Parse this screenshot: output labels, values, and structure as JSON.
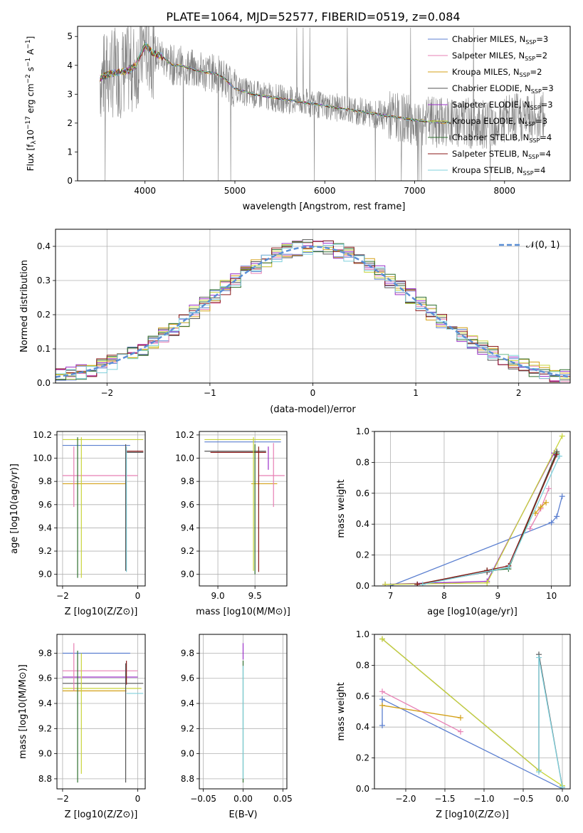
{
  "figure": {
    "title": "PLATE=1064, MJD=52577, FIBERID=0519, z=0.084"
  },
  "colors": {
    "Chabrier MILES": "#5b7fd0",
    "Salpeter MILES": "#e77fb4",
    "Kroupa MILES": "#d4a017",
    "Chabrier ELODIE": "#555555",
    "Salpeter ELODIE": "#9b30c8",
    "Kroupa ELODIE": "#c8d43a",
    "Chabrier STELIB": "#2f6f2f",
    "Salpeter STELIB": "#8b1a1a",
    "Kroupa STELIB": "#7fd0dc",
    "data": "#808080",
    "orange": "#e8702a",
    "normal_curve": "#5b8fd6"
  },
  "chart_data": [
    {
      "id": "spectrum",
      "type": "line",
      "title": "PLATE=1064, MJD=52577, FIBERID=0519, z=0.084",
      "xlabel": "wavelength [Angstrom, rest frame]",
      "ylabel_parts": [
        "Flux [f",
        "λ",
        "10",
        "−17",
        " erg cm",
        "−2",
        " s",
        "−1",
        " A",
        "−1",
        "]"
      ],
      "xlim": [
        3250,
        8730
      ],
      "ylim": [
        0,
        5.35
      ],
      "xticks": [
        4000,
        5000,
        6000,
        7000,
        8000
      ],
      "xtick_labels": [
        "4000",
        "5000",
        "6000",
        "7000",
        "8000"
      ],
      "yticks": [
        0,
        1,
        2,
        3,
        4,
        5
      ],
      "ytick_labels": [
        "0",
        "1",
        "2",
        "3",
        "4",
        "5"
      ],
      "grid": false,
      "legend_position": "top-right",
      "data_color": "#808080",
      "model_x": [
        3500,
        3600,
        3700,
        3800,
        3900,
        4000,
        4100,
        4200,
        4300,
        4400,
        4500,
        4600,
        4700,
        4800,
        4900,
        5000,
        5200,
        5400,
        5600,
        5800,
        6000,
        6200,
        6400,
        6600,
        6800,
        7000,
        7200,
        7400,
        7600,
        7800,
        8000,
        8200,
        8400
      ],
      "model_y": [
        3.55,
        3.7,
        3.75,
        3.8,
        4.0,
        4.7,
        4.4,
        4.3,
        4.0,
        4.0,
        3.9,
        3.8,
        3.75,
        3.7,
        3.5,
        3.2,
        3.0,
        2.9,
        2.8,
        2.7,
        2.6,
        2.5,
        2.4,
        2.3,
        2.2,
        2.1,
        2.05,
        2.0,
        2.0,
        2.0,
        2.1,
        2.2,
        2.2
      ],
      "legend": [
        {
          "label": "Chabrier MILES, N",
          "sub": "SSP",
          "suffix": "=3"
        },
        {
          "label": "Salpeter MILES, N",
          "sub": "SSP",
          "suffix": "=2"
        },
        {
          "label": "Kroupa MILES, N",
          "sub": "SSP",
          "suffix": "=2"
        },
        {
          "label": "Chabrier ELODIE, N",
          "sub": "SSP",
          "suffix": "=3"
        },
        {
          "label": "Salpeter ELODIE, N",
          "sub": "SSP",
          "suffix": "=3"
        },
        {
          "label": "Kroupa ELODIE, N",
          "sub": "SSP",
          "suffix": "=3"
        },
        {
          "label": "Chabrier STELIB, N",
          "sub": "SSP",
          "suffix": "=4"
        },
        {
          "label": "Salpeter STELIB, N",
          "sub": "SSP",
          "suffix": "=4"
        },
        {
          "label": "Kroupa STELIB, N",
          "sub": "SSP",
          "suffix": "=4"
        }
      ]
    },
    {
      "id": "residuals",
      "type": "line",
      "xlabel": "(data-model)/error",
      "ylabel": "Normed distribution",
      "xlim": [
        -2.5,
        2.5
      ],
      "ylim": [
        0,
        0.45
      ],
      "xticks": [
        -2,
        -1,
        0,
        1,
        2
      ],
      "xtick_labels": [
        "−2",
        "−1",
        "0",
        "1",
        "2"
      ],
      "yticks": [
        0,
        0.1,
        0.2,
        0.3,
        0.4
      ],
      "ytick_labels": [
        "0.0",
        "0.1",
        "0.2",
        "0.3",
        "0.4"
      ],
      "grid": true,
      "legend_position": "top-right",
      "normal_label": "𝒩(0, 1)",
      "bin_width": 0.1
    },
    {
      "id": "age_vs_Z",
      "type": "scatter",
      "xlabel": "Z [log10(Z/Z⊙)]",
      "ylabel": "age  [log10(age/yr)]",
      "xlim": [
        -2.15,
        0.2
      ],
      "ylim": [
        8.9,
        10.23
      ],
      "xticks": [
        -2,
        0
      ],
      "xtick_labels": [
        "−2",
        "0"
      ],
      "yticks": [
        9.0,
        9.2,
        9.4,
        9.6,
        9.8,
        10.0,
        10.2
      ],
      "ytick_labels": [
        "9.0",
        "9.2",
        "9.4",
        "9.6",
        "9.8",
        "10.0",
        "10.2"
      ],
      "grid": true
    },
    {
      "id": "age_vs_mass",
      "type": "scatter",
      "xlabel": "mass [log10(M/M⊙)]",
      "ylabel": "",
      "xlim": [
        8.75,
        9.93
      ],
      "ylim": [
        8.9,
        10.23
      ],
      "xticks": [
        9.0,
        9.5
      ],
      "xtick_labels": [
        "9.0",
        "9.5"
      ],
      "yticks": [
        9.0,
        9.2,
        9.4,
        9.6,
        9.8,
        10.0,
        10.2
      ],
      "ytick_labels": [
        "9.0",
        "9.2",
        "9.4",
        "9.6",
        "9.8",
        "10.0",
        "10.2"
      ],
      "grid": true
    },
    {
      "id": "weight_vs_age",
      "type": "line",
      "xlabel": "age  [log10(age/yr)]",
      "ylabel": "mass weight",
      "xlim": [
        6.7,
        10.35
      ],
      "ylim": [
        0,
        1.0
      ],
      "xticks": [
        7,
        8,
        9,
        10
      ],
      "xtick_labels": [
        "7",
        "8",
        "9",
        "10"
      ],
      "yticks": [
        0,
        0.2,
        0.4,
        0.6,
        0.8,
        1.0
      ],
      "ytick_labels": [
        "0.0",
        "0.2",
        "0.4",
        "0.6",
        "0.8",
        "1.0"
      ],
      "grid": true,
      "series": [
        {
          "model": "Chabrier MILES",
          "x": [
            7.0,
            10.0,
            10.1,
            10.2
          ],
          "y": [
            0.0,
            0.41,
            0.45,
            0.58
          ]
        },
        {
          "model": "Salpeter MILES",
          "x": [
            9.6,
            9.8,
            9.95
          ],
          "y": [
            0.37,
            0.5,
            0.63
          ]
        },
        {
          "model": "Kroupa MILES",
          "x": [
            9.7,
            9.8,
            9.9
          ],
          "y": [
            0.47,
            0.51,
            0.54
          ]
        },
        {
          "model": "Chabrier ELODIE",
          "x": [
            7.5,
            8.8,
            9.2,
            10.1
          ],
          "y": [
            0.01,
            0.09,
            0.12,
            0.87
          ]
        },
        {
          "model": "Salpeter ELODIE",
          "x": [
            6.9,
            8.8,
            10.05
          ],
          "y": [
            0.01,
            0.03,
            0.86
          ]
        },
        {
          "model": "Kroupa ELODIE",
          "x": [
            6.9,
            8.8,
            10.2
          ],
          "y": [
            0.01,
            0.02,
            0.97
          ]
        },
        {
          "model": "Chabrier STELIB",
          "x": [
            7.5,
            8.8,
            9.2,
            10.1
          ],
          "y": [
            0.01,
            0.1,
            0.11,
            0.86
          ]
        },
        {
          "model": "Salpeter STELIB",
          "x": [
            7.5,
            8.8,
            9.2,
            10.1
          ],
          "y": [
            0.01,
            0.1,
            0.13,
            0.85
          ]
        },
        {
          "model": "Kroupa STELIB",
          "x": [
            7.6,
            8.9,
            9.2,
            10.15
          ],
          "y": [
            0.01,
            0.1,
            0.12,
            0.84
          ]
        }
      ]
    },
    {
      "id": "mass_vs_Z",
      "type": "scatter",
      "xlabel": "Z [log10(Z/Z⊙)]",
      "ylabel": "mass [log10(M/M⊙)]",
      "xlim": [
        -2.15,
        0.2
      ],
      "ylim": [
        8.72,
        9.95
      ],
      "xticks": [
        -2,
        0
      ],
      "xtick_labels": [
        "−2",
        "0"
      ],
      "yticks": [
        8.8,
        9.0,
        9.2,
        9.4,
        9.6,
        9.8
      ],
      "ytick_labels": [
        "8.8",
        "9.0",
        "9.2",
        "9.4",
        "9.6",
        "9.8"
      ],
      "grid": true
    },
    {
      "id": "mass_vs_EBV",
      "type": "scatter",
      "xlabel": "E(B-V)",
      "ylabel": "",
      "xlim": [
        -0.055,
        0.055
      ],
      "ylim": [
        8.72,
        9.95
      ],
      "xticks": [
        -0.05,
        0.0,
        0.05
      ],
      "xtick_labels": [
        "−0.05",
        "0.00",
        "0.05"
      ],
      "yticks": [
        8.8,
        9.0,
        9.2,
        9.4,
        9.6,
        9.8
      ],
      "ytick_labels": [
        "8.8",
        "9.0",
        "9.2",
        "9.4",
        "9.6",
        "9.8"
      ],
      "grid": true
    },
    {
      "id": "weight_vs_Z",
      "type": "line",
      "xlabel": "Z [log10(Z/Z⊙)]",
      "ylabel": "mass weight",
      "xlim": [
        -2.4,
        0.1
      ],
      "ylim": [
        0,
        1.0
      ],
      "xticks": [
        -2.0,
        -1.5,
        -1.0,
        -0.5,
        0.0
      ],
      "xtick_labels": [
        "−2.0",
        "−1.5",
        "−1.0",
        "−0.5",
        "0.0"
      ],
      "yticks": [
        0,
        0.2,
        0.4,
        0.6,
        0.8,
        1.0
      ],
      "ytick_labels": [
        "0.0",
        "0.2",
        "0.4",
        "0.6",
        "0.8",
        "1.0"
      ],
      "grid": true,
      "series": [
        {
          "model": "Chabrier MILES",
          "x": [
            -2.3,
            -2.3,
            0.0
          ],
          "y": [
            0.41,
            0.58,
            0.0
          ]
        },
        {
          "model": "Salpeter MILES",
          "x": [
            -2.3,
            -1.3
          ],
          "y": [
            0.63,
            0.37
          ]
        },
        {
          "model": "Kroupa MILES",
          "x": [
            -2.3,
            -1.3
          ],
          "y": [
            0.54,
            0.46
          ]
        },
        {
          "model": "Chabrier ELODIE",
          "x": [
            -2.3,
            -0.3,
            -0.3,
            0.0
          ],
          "y": [
            0.97,
            0.12,
            0.87,
            0.01
          ]
        },
        {
          "model": "Kroupa ELODIE",
          "x": [
            -2.3,
            -0.3,
            0.0
          ],
          "y": [
            0.97,
            0.12,
            0.02
          ]
        },
        {
          "model": "Kroupa STELIB",
          "x": [
            -0.3,
            -0.3,
            0.0
          ],
          "y": [
            0.11,
            0.85,
            0.01
          ]
        }
      ]
    }
  ]
}
